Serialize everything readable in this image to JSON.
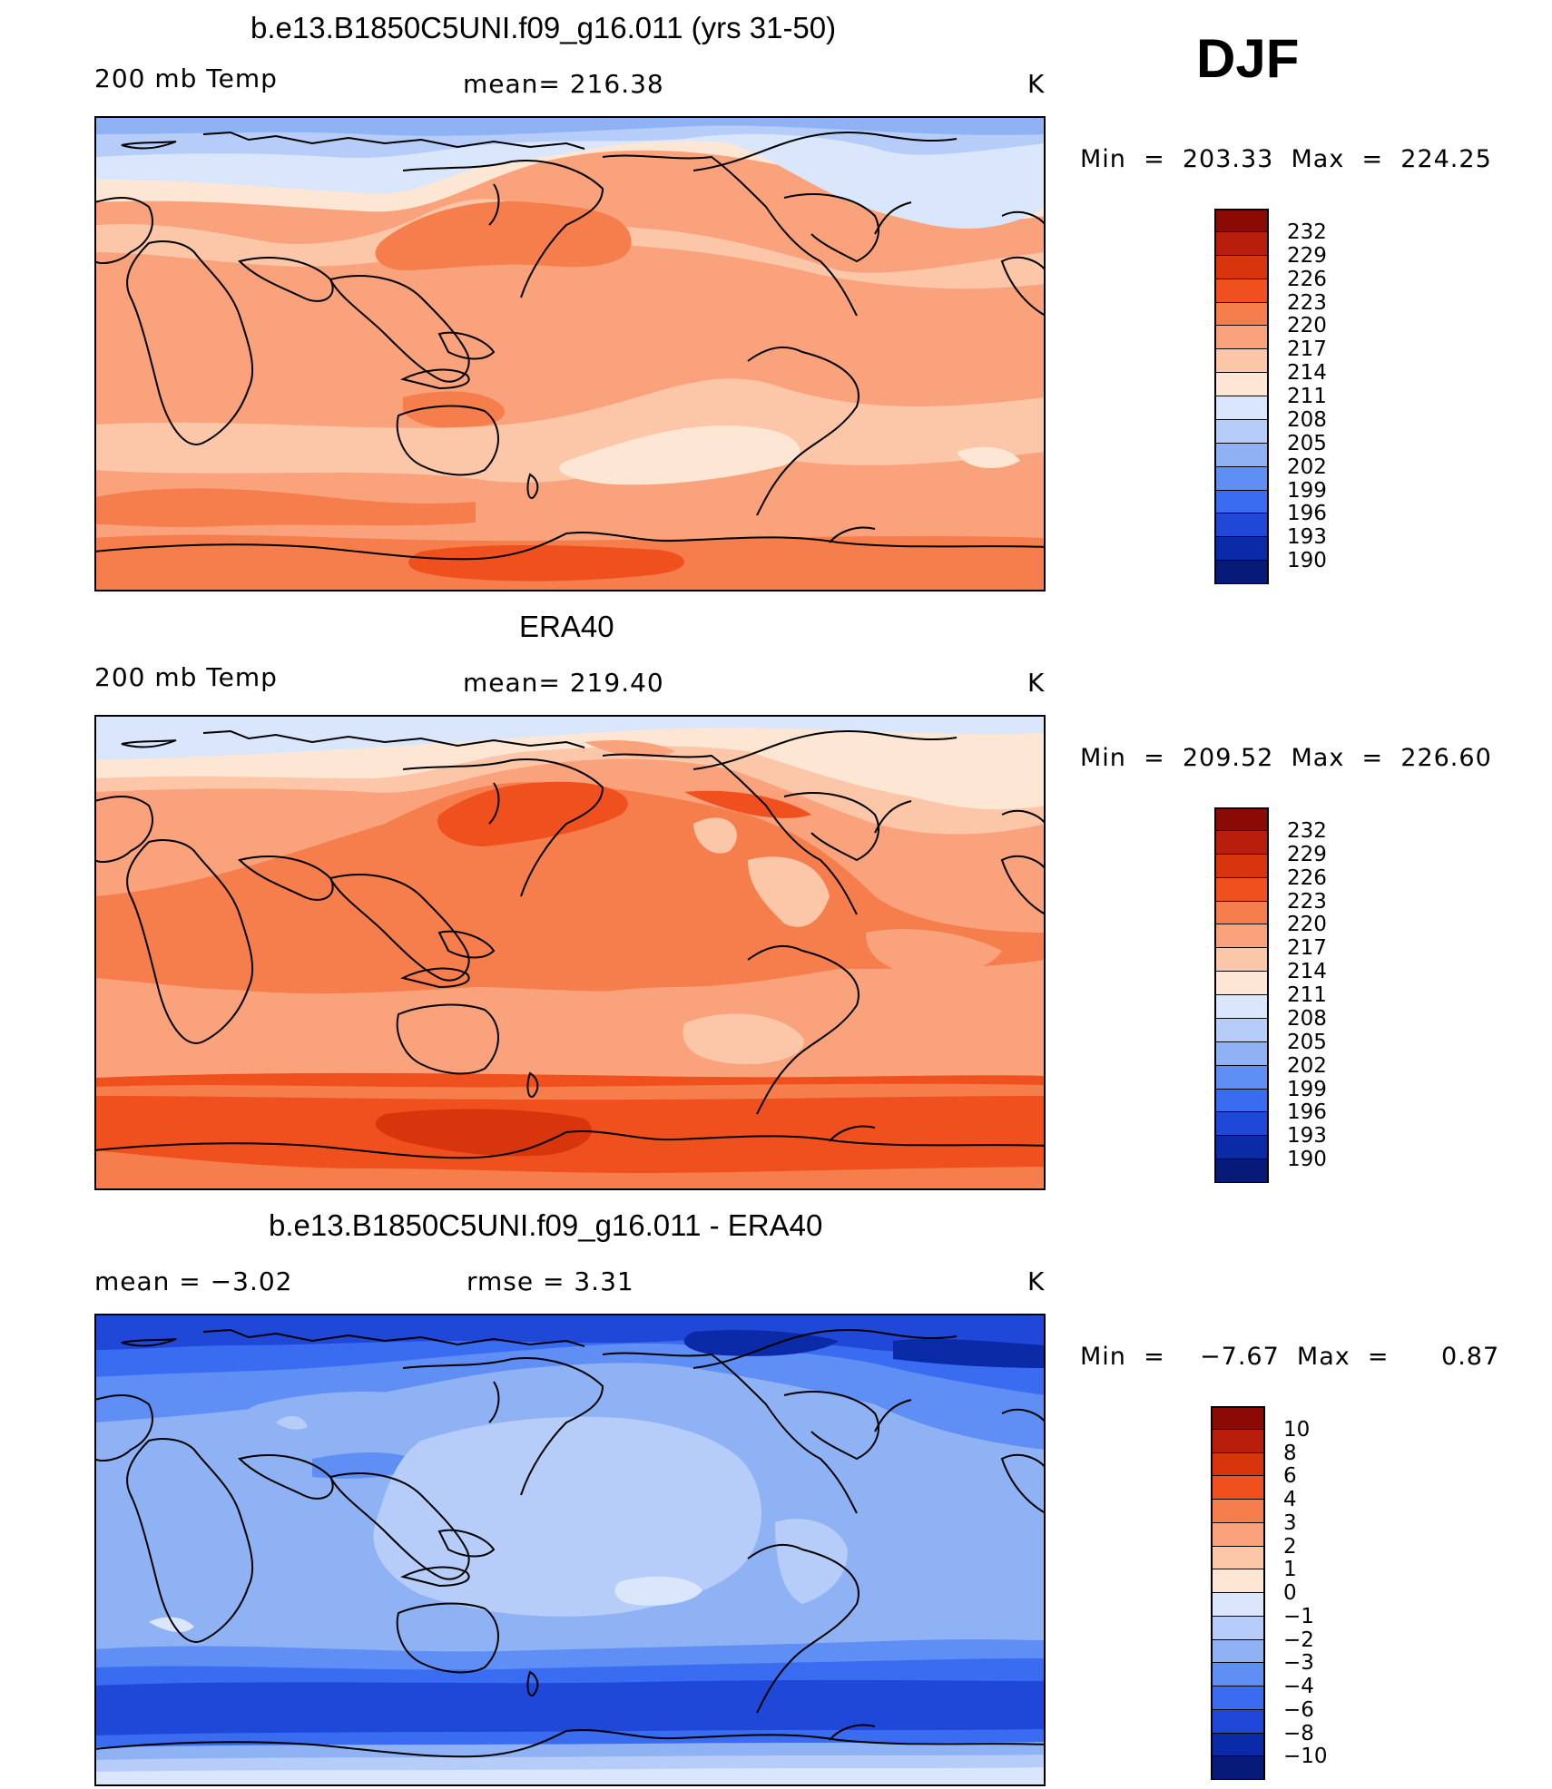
{
  "season": "DJF",
  "panels": [
    {
      "title": "b.e13.B1850C5UNI.f09_g16.011 (yrs 31-50)",
      "left_label": "200 mb Temp",
      "center_label": "mean= 216.38",
      "right_label": "K",
      "minmax": "Min  =  203.33  Max  =  224.25",
      "palette": "abs"
    },
    {
      "title": "ERA40",
      "left_label": "200 mb Temp",
      "center_label": "mean= 219.40",
      "right_label": "K",
      "minmax": "Min  =  209.52  Max  =  226.60",
      "palette": "abs"
    },
    {
      "title": "b.e13.B1850C5UNI.f09_g16.011 - ERA40",
      "left_label": "mean  =    −3.02",
      "center_label": "rmse  =     3.31",
      "right_label": "K",
      "minmax": "Min  =    −7.67  Max  =      0.87",
      "palette": "diff"
    }
  ],
  "colorbars": {
    "abs": {
      "levels": [
        "232",
        "229",
        "226",
        "223",
        "220",
        "217",
        "214",
        "211",
        "208",
        "205",
        "202",
        "199",
        "196",
        "193",
        "190"
      ],
      "colors": [
        "#8b0a05",
        "#b81e0b",
        "#d8350c",
        "#f0501e",
        "#f57e4c",
        "#f9a27c",
        "#fcc7a8",
        "#fde7d4",
        "#d9e6fb",
        "#b5cdf8",
        "#8fb2f5",
        "#5f8ef4",
        "#3a6cf2",
        "#1f48d8",
        "#0b2aa8",
        "#061a7a"
      ]
    },
    "diff": {
      "levels": [
        "10",
        "8",
        "6",
        "4",
        "3",
        "2",
        "1",
        "0",
        "−1",
        "−2",
        "−3",
        "−4",
        "−6",
        "−8",
        "−10"
      ],
      "colors": [
        "#8b0a05",
        "#b81e0b",
        "#d8350c",
        "#f0501e",
        "#f57e4c",
        "#f9a27c",
        "#fcc7a8",
        "#fde7d4",
        "#d9e6fb",
        "#b5cdf8",
        "#8fb2f5",
        "#5f8ef4",
        "#3a6cf2",
        "#1f48d8",
        "#0b2aa8",
        "#061a7a"
      ]
    }
  }
}
